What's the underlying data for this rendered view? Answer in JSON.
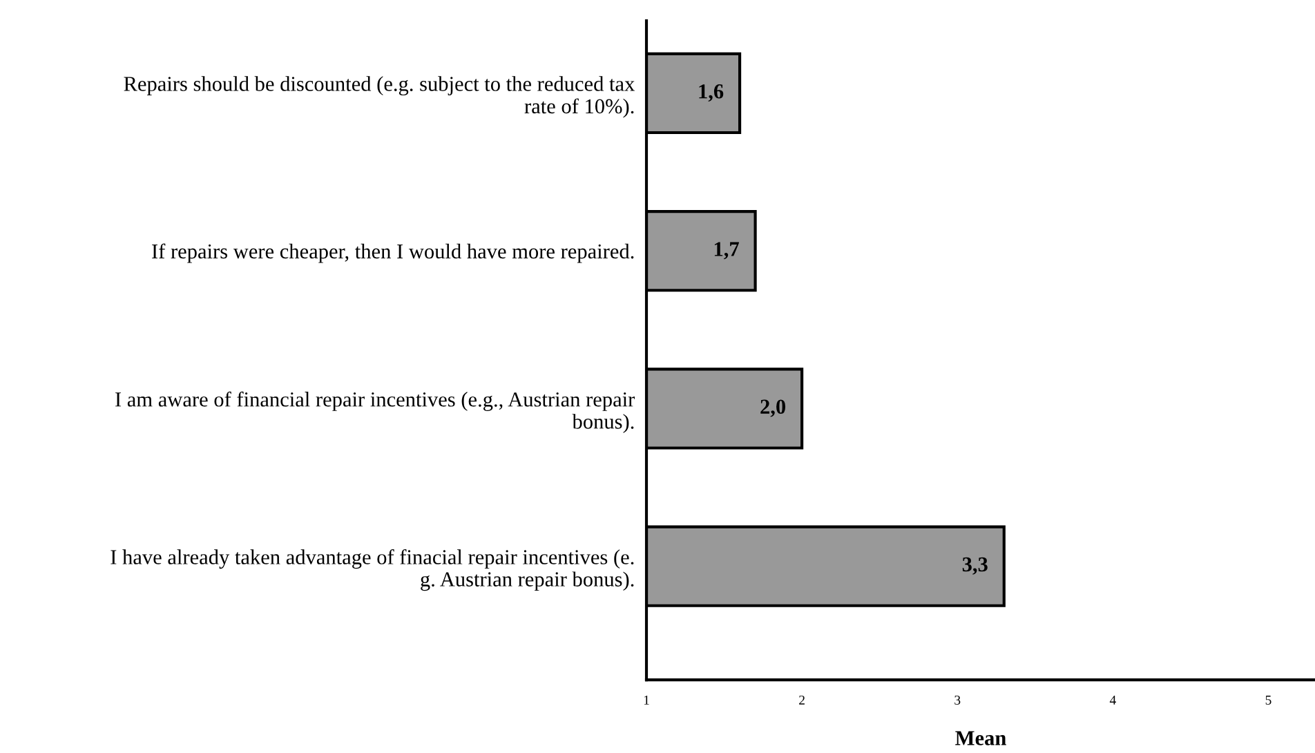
{
  "chart_data": {
    "type": "bar",
    "orientation": "horizontal",
    "xlabel": "Mean",
    "categories": [
      "Repairs should be discounted (e.g. subject to the reduced tax\nrate of 10%).",
      "If repairs were cheaper, then I would have more repaired.",
      "I am aware of financial repair incentives (e.g., Austrian repair\nbonus).",
      "I have already taken advantage of finacial repair incentives (e.\ng. Austrian repair bonus)."
    ],
    "values": [
      1.6,
      1.7,
      2.0,
      3.3
    ],
    "value_labels": [
      "1,6",
      "1,7",
      "2,0",
      "3,3"
    ],
    "color": "#999999",
    "xlim": [
      1,
      5.3
    ],
    "xticks": [
      1,
      2,
      3,
      4,
      5
    ],
    "grid": false,
    "legend": false
  }
}
